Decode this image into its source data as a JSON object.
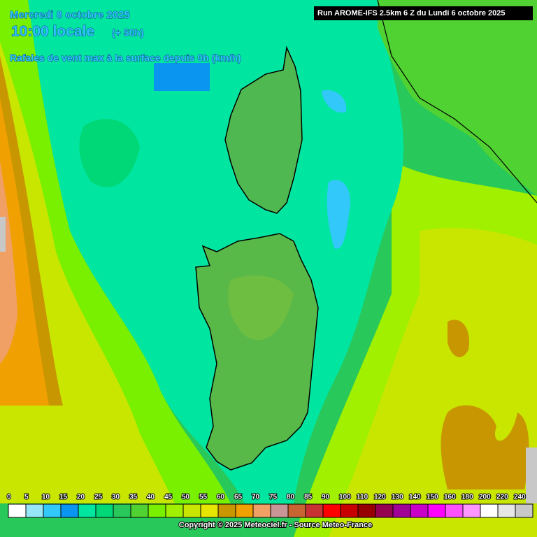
{
  "header": {
    "date": "Mercredi 8 octobre 2025",
    "time": "10:00 locale",
    "lead": "(+ 50h)",
    "parameter": "Rafales de vent max à la surface depuis 0h (km/h)",
    "run": "Run AROME-IFS 2.5km 6 Z du Lundi 6 octobre 2025"
  },
  "legend": {
    "items": [
      {
        "value": 0,
        "color": "#ffffff"
      },
      {
        "value": 5,
        "color": "#96e6f8"
      },
      {
        "value": 10,
        "color": "#32c8fa"
      },
      {
        "value": 15,
        "color": "#0a96f0"
      },
      {
        "value": 20,
        "color": "#00e6a0"
      },
      {
        "value": 25,
        "color": "#00d878"
      },
      {
        "value": 30,
        "color": "#28c85a"
      },
      {
        "value": 35,
        "color": "#50d232"
      },
      {
        "value": 40,
        "color": "#78f000"
      },
      {
        "value": 45,
        "color": "#a0f000"
      },
      {
        "value": 50,
        "color": "#c8e600"
      },
      {
        "value": 55,
        "color": "#e6e600"
      },
      {
        "value": 60,
        "color": "#c89600"
      },
      {
        "value": 65,
        "color": "#f0a000"
      },
      {
        "value": 70,
        "color": "#f0a064"
      },
      {
        "value": 75,
        "color": "#c89696"
      },
      {
        "value": 80,
        "color": "#c86432"
      },
      {
        "value": 85,
        "color": "#c83232"
      },
      {
        "value": 90,
        "color": "#ff0000"
      },
      {
        "value": 100,
        "color": "#c80000"
      },
      {
        "value": 110,
        "color": "#960000"
      },
      {
        "value": 120,
        "color": "#960050"
      },
      {
        "value": 130,
        "color": "#a00096"
      },
      {
        "value": 140,
        "color": "#c800c8"
      },
      {
        "value": 150,
        "color": "#ff00ff"
      },
      {
        "value": 160,
        "color": "#ff50ff"
      },
      {
        "value": 180,
        "color": "#ff96ff"
      },
      {
        "value": 200,
        "color": "#ffffff"
      },
      {
        "value": 220,
        "color": "#e6e6e6"
      },
      {
        "value": 240,
        "color": "#c8c8c8"
      }
    ]
  },
  "footer": {
    "copyright": "Copyright © 2025 Meteociel.fr - Source Meteo-France"
  }
}
